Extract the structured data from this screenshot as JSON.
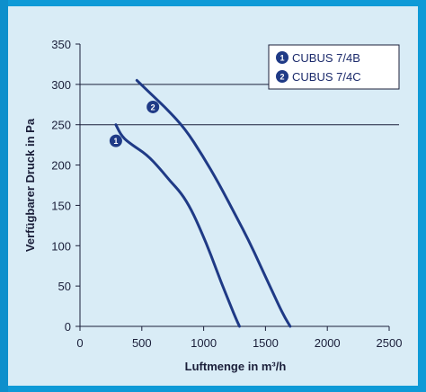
{
  "chart_data": {
    "type": "line",
    "xlabel": "Luftmenge in m³/h",
    "ylabel": "Verfügbarer Druck in Pa",
    "xlim": [
      0,
      2500
    ],
    "ylim": [
      0,
      350
    ],
    "x_ticks": [
      "0",
      "500",
      "1000",
      "1500",
      "2000",
      "2500"
    ],
    "y_ticks": [
      "0",
      "50",
      "100",
      "150",
      "200",
      "250",
      "300",
      "350"
    ],
    "reference_lines_y": [
      250,
      300
    ],
    "series": [
      {
        "name": "CUBUS 7/4B",
        "marker": "1",
        "color": "#1f3a86",
        "points": [
          [
            290,
            250
          ],
          [
            340,
            235
          ],
          [
            420,
            225
          ],
          [
            540,
            213
          ],
          [
            650,
            195
          ],
          [
            730,
            180
          ],
          [
            820,
            165
          ],
          [
            900,
            145
          ],
          [
            980,
            118
          ],
          [
            1060,
            88
          ],
          [
            1140,
            55
          ],
          [
            1220,
            25
          ],
          [
            1260,
            10
          ],
          [
            1290,
            0
          ]
        ]
      },
      {
        "name": "CUBUS 7/4C",
        "marker": "2",
        "color": "#1f3a86",
        "points": [
          [
            460,
            305
          ],
          [
            560,
            290
          ],
          [
            700,
            270
          ],
          [
            850,
            245
          ],
          [
            990,
            212
          ],
          [
            1120,
            178
          ],
          [
            1250,
            140
          ],
          [
            1360,
            108
          ],
          [
            1460,
            75
          ],
          [
            1550,
            45
          ],
          [
            1620,
            22
          ],
          [
            1660,
            10
          ],
          [
            1700,
            0
          ]
        ]
      }
    ],
    "marker_positions": [
      {
        "label": "1",
        "x": 290,
        "y": 230
      },
      {
        "label": "2",
        "x": 590,
        "y": 272
      }
    ],
    "legend": {
      "placement": "top-right",
      "entries": [
        {
          "marker": "1",
          "text": "CUBUS 7/4B"
        },
        {
          "marker": "2",
          "text": "CUBUS 7/4C"
        }
      ]
    },
    "grid": false
  }
}
